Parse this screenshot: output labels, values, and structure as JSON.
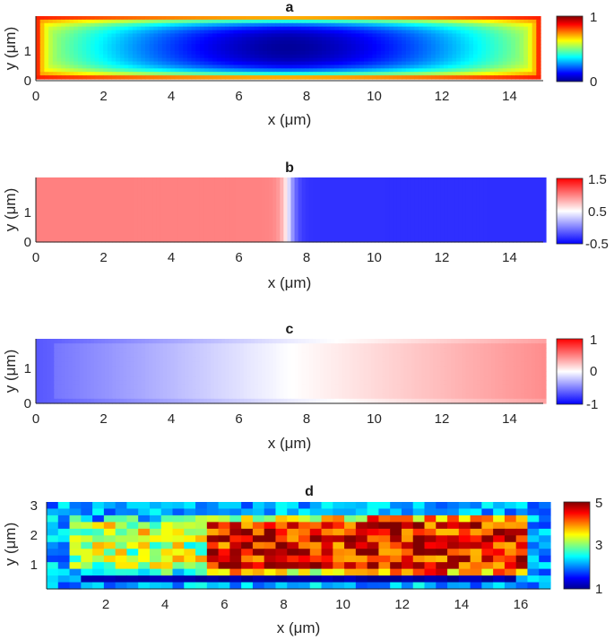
{
  "chart_data": [
    {
      "id": "a",
      "type": "heatmap",
      "title": "a",
      "xlabel": "x (μm)",
      "ylabel": "y (μm)",
      "xlim": [
        0,
        15
      ],
      "ylim": [
        0,
        1.9
      ],
      "xticks": [
        "0",
        "2",
        "4",
        "6",
        "8",
        "10",
        "12",
        "14"
      ],
      "yticks": [
        "0",
        "1"
      ],
      "colormap": "jet",
      "clim": [
        0,
        1
      ],
      "colorbar_ticks": [
        "1",
        "0"
      ],
      "field": "Cell-shaped field: value ≈ 1 along the boundary, decreasing toward a minimum of ≈ 0 at the centre (x ≈ 7.5 μm)."
    },
    {
      "id": "b",
      "type": "heatmap",
      "title": "b",
      "xlabel": "x (μm)",
      "ylabel": "y (μm)",
      "xlim": [
        0,
        15
      ],
      "ylim": [
        0,
        1.9
      ],
      "xticks": [
        "0",
        "2",
        "4",
        "6",
        "8",
        "10",
        "12",
        "14"
      ],
      "yticks": [
        "0",
        "1"
      ],
      "colormap": "blue-white-red",
      "clim": [
        -0.5,
        1.5
      ],
      "colorbar_ticks": [
        "1.5",
        "0.5",
        "-0.5"
      ],
      "field": "Step profile: about 1 for x < 7.5 μm, dropping through 0.5 at mid-cell to about −0.3 for x > 7.5 μm."
    },
    {
      "id": "c",
      "type": "heatmap",
      "title": "c",
      "xlabel": "x (μm)",
      "ylabel": "y (μm)",
      "xlim": [
        0,
        15
      ],
      "ylim": [
        0,
        1.9
      ],
      "xticks": [
        "0",
        "2",
        "4",
        "6",
        "8",
        "10",
        "12",
        "14"
      ],
      "yticks": [
        "0",
        "1"
      ],
      "colormap": "blue-white-red",
      "clim": [
        -1,
        1
      ],
      "colorbar_ticks": [
        "1",
        "0",
        "-1"
      ],
      "field": "Antisymmetric gradient along x: about −0.7 at x = 0, 0 at x = 7.5 μm, about +0.5 at x = 15 μm."
    },
    {
      "id": "d",
      "type": "heatmap",
      "title": "d",
      "xlabel": "x (μm)",
      "ylabel": "y (μm)",
      "xlim": [
        0,
        17
      ],
      "ylim": [
        0.2,
        3
      ],
      "xticks": [
        "2",
        "4",
        "6",
        "8",
        "10",
        "12",
        "14",
        "16"
      ],
      "yticks": [
        "3",
        "2",
        "1"
      ],
      "colormap": "jet",
      "clim": [
        1,
        5
      ],
      "colorbar_ticks": [
        "5",
        "3",
        "1"
      ],
      "field": "Noisy 44×13 pixel measurement: about 1.5 background outside the cell, about 3.2 inside for x < 6 μm, about 4.5 inside for x > 6 μm."
    }
  ]
}
